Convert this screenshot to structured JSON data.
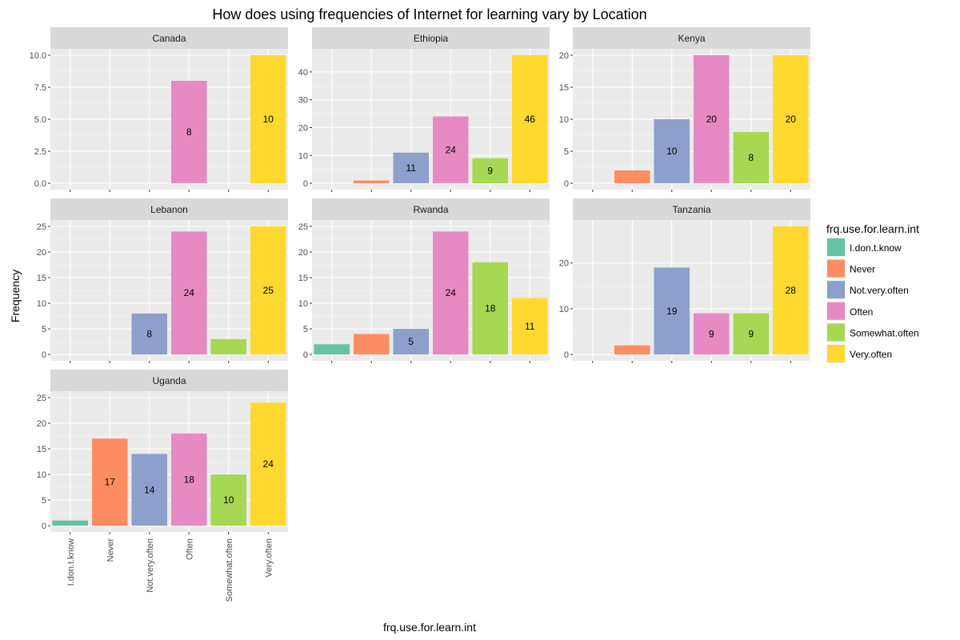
{
  "chart_data": {
    "type": "bar",
    "title": "How does using frequencies of Internet for learning vary by Location",
    "xlabel": "frq.use.for.learn.int",
    "ylabel": "Frequency",
    "categories": [
      "I.don.t.know",
      "Never",
      "Not.very.often",
      "Often",
      "Somewhat.often",
      "Very.often"
    ],
    "colors": [
      "#66c2a5",
      "#fc8d62",
      "#8da0cb",
      "#e78ac3",
      "#a6d854",
      "#ffd92f"
    ],
    "legend": {
      "title": "frq.use.for.learn.int",
      "position": "right",
      "entries": [
        "I.don.t.know",
        "Never",
        "Not.very.often",
        "Often",
        "Somewhat.often",
        "Very.often"
      ]
    },
    "grid": true,
    "panels": [
      {
        "name": "Canada",
        "values": [
          0,
          0,
          0,
          8,
          0,
          10
        ],
        "labels": [
          "",
          "",
          "",
          "8",
          "",
          "10"
        ],
        "ylim": [
          0,
          10
        ],
        "yticks": [
          0,
          2.5,
          5,
          7.5,
          10
        ],
        "ytick_labels": [
          "0.0",
          "2.5",
          "5.0",
          "7.5",
          "10.0"
        ]
      },
      {
        "name": "Ethiopia",
        "values": [
          0,
          1,
          11,
          24,
          9,
          46
        ],
        "labels": [
          "",
          "",
          "11",
          "24",
          "9",
          "46"
        ],
        "ylim": [
          0,
          46
        ],
        "yticks": [
          0,
          10,
          20,
          30,
          40
        ],
        "ytick_labels": [
          "0",
          "10",
          "20",
          "30",
          "40"
        ]
      },
      {
        "name": "Kenya",
        "values": [
          0,
          2,
          10,
          20,
          8,
          20
        ],
        "labels": [
          "",
          "",
          "10",
          "20",
          "8",
          "20"
        ],
        "ylim": [
          0,
          20
        ],
        "yticks": [
          0,
          5,
          10,
          15,
          20
        ],
        "ytick_labels": [
          "0",
          "5",
          "10",
          "15",
          "20"
        ]
      },
      {
        "name": "Lebanon",
        "values": [
          0,
          0,
          8,
          24,
          3,
          25
        ],
        "labels": [
          "",
          "",
          "8",
          "24",
          "",
          "25"
        ],
        "ylim": [
          0,
          25
        ],
        "yticks": [
          0,
          5,
          10,
          15,
          20,
          25
        ],
        "ytick_labels": [
          "0",
          "5",
          "10",
          "15",
          "20",
          "25"
        ]
      },
      {
        "name": "Rwanda",
        "values": [
          2,
          4,
          5,
          24,
          18,
          11
        ],
        "labels": [
          "",
          "",
          "5",
          "24",
          "18",
          "11"
        ],
        "ylim": [
          0,
          25
        ],
        "yticks": [
          0,
          5,
          10,
          15,
          20,
          25
        ],
        "ytick_labels": [
          "0",
          "5",
          "10",
          "15",
          "20",
          "25"
        ]
      },
      {
        "name": "Tanzania",
        "values": [
          0,
          2,
          19,
          9,
          9,
          28
        ],
        "labels": [
          "",
          "",
          "19",
          "9",
          "9",
          "28"
        ],
        "ylim": [
          0,
          28
        ],
        "yticks": [
          0,
          10,
          20
        ],
        "ytick_labels": [
          "0",
          "10",
          "20"
        ]
      },
      {
        "name": "Uganda",
        "values": [
          1,
          17,
          14,
          18,
          10,
          24
        ],
        "labels": [
          "",
          "17",
          "14",
          "18",
          "10",
          "24"
        ],
        "ylim": [
          0,
          25
        ],
        "yticks": [
          0,
          5,
          10,
          15,
          20,
          25
        ],
        "ytick_labels": [
          "0",
          "5",
          "10",
          "15",
          "20",
          "25"
        ]
      }
    ]
  }
}
